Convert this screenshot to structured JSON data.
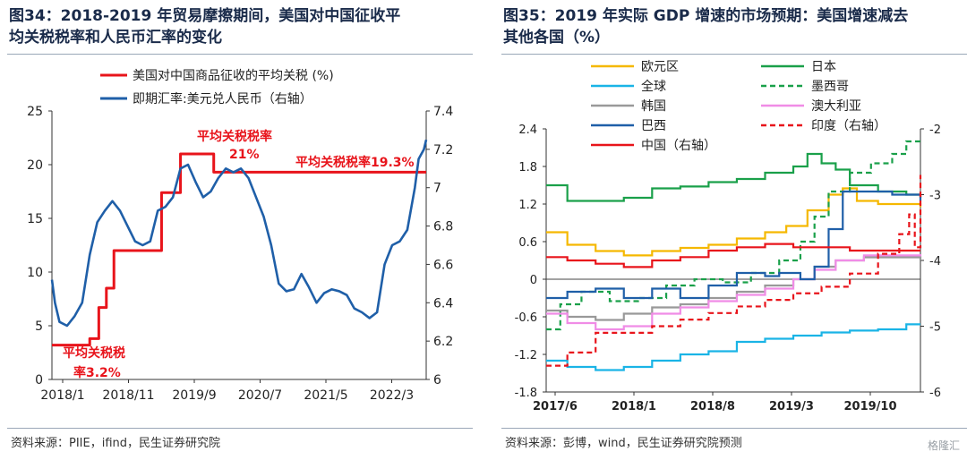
{
  "left": {
    "title_l1": "图34：2018-2019 年贸易摩擦期间，美国对中国征收平",
    "title_l2": "均关税税率和人民币汇率的变化",
    "source": "资料来源：PIIE，ifind，民生证券研究院",
    "chart_data": {
      "type": "line",
      "x_ticks": [
        "2018/1",
        "2018/11",
        "2019/9",
        "2020/7",
        "2021/5",
        "2022/3"
      ],
      "y_left": {
        "min": 0,
        "max": 25,
        "ticks": [
          0,
          5,
          10,
          15,
          20,
          25
        ]
      },
      "y_right": {
        "min": 6,
        "max": 7.4,
        "ticks": [
          6,
          6.2,
          6.4,
          6.6,
          6.8,
          7,
          7.2,
          7.4
        ]
      },
      "legend": [
        "美国对中国商品征收的平均关税 (%)",
        "即期汇率:美元兑人民币（右轴）"
      ],
      "annotations": [
        "平均关税税",
        "率3.2%",
        "平均关税税率",
        "21%",
        "平均关税税率19.3%"
      ],
      "series": [
        {
          "name": "美国对中国商品征收的平均关税 (%)",
          "axis": "left",
          "color": "#e8141b",
          "step": true,
          "points": [
            [
              2018.0,
              3.2
            ],
            [
              2018.3,
              3.2
            ],
            [
              2018.5,
              3.8
            ],
            [
              2018.62,
              6.7
            ],
            [
              2018.72,
              8.5
            ],
            [
              2018.82,
              12.0
            ],
            [
              2019.35,
              12.0
            ],
            [
              2019.45,
              17.4
            ],
            [
              2019.65,
              17.4
            ],
            [
              2019.7,
              21.0
            ],
            [
              2020.12,
              21.0
            ],
            [
              2020.14,
              19.3
            ],
            [
              2022.95,
              19.3
            ]
          ]
        },
        {
          "name": "即期汇率:美元兑人民币（右轴）",
          "axis": "right",
          "color": "#1f5fa8",
          "step": false,
          "points": [
            [
              2018.0,
              6.52
            ],
            [
              2018.04,
              6.4
            ],
            [
              2018.1,
              6.3
            ],
            [
              2018.2,
              6.28
            ],
            [
              2018.3,
              6.33
            ],
            [
              2018.4,
              6.4
            ],
            [
              2018.5,
              6.65
            ],
            [
              2018.6,
              6.82
            ],
            [
              2018.7,
              6.88
            ],
            [
              2018.8,
              6.93
            ],
            [
              2018.9,
              6.88
            ],
            [
              2019.0,
              6.8
            ],
            [
              2019.1,
              6.72
            ],
            [
              2019.2,
              6.7
            ],
            [
              2019.3,
              6.72
            ],
            [
              2019.4,
              6.88
            ],
            [
              2019.5,
              6.9
            ],
            [
              2019.6,
              6.95
            ],
            [
              2019.7,
              7.1
            ],
            [
              2019.8,
              7.12
            ],
            [
              2019.9,
              7.03
            ],
            [
              2020.0,
              6.95
            ],
            [
              2020.1,
              6.98
            ],
            [
              2020.2,
              7.05
            ],
            [
              2020.3,
              7.1
            ],
            [
              2020.4,
              7.08
            ],
            [
              2020.5,
              7.1
            ],
            [
              2020.6,
              7.05
            ],
            [
              2020.7,
              6.95
            ],
            [
              2020.8,
              6.85
            ],
            [
              2020.9,
              6.7
            ],
            [
              2021.0,
              6.5
            ],
            [
              2021.1,
              6.46
            ],
            [
              2021.2,
              6.47
            ],
            [
              2021.3,
              6.55
            ],
            [
              2021.4,
              6.48
            ],
            [
              2021.5,
              6.4
            ],
            [
              2021.6,
              6.45
            ],
            [
              2021.7,
              6.47
            ],
            [
              2021.8,
              6.46
            ],
            [
              2021.9,
              6.44
            ],
            [
              2022.0,
              6.37
            ],
            [
              2022.1,
              6.35
            ],
            [
              2022.2,
              6.32
            ],
            [
              2022.3,
              6.35
            ],
            [
              2022.4,
              6.6
            ],
            [
              2022.5,
              6.7
            ],
            [
              2022.6,
              6.72
            ],
            [
              2022.7,
              6.78
            ],
            [
              2022.8,
              7.0
            ],
            [
              2022.85,
              7.15
            ],
            [
              2022.92,
              7.2
            ],
            [
              2022.95,
              7.25
            ]
          ]
        }
      ]
    }
  },
  "right": {
    "title_l1": "图35：2019 年实际 GDP 增速的市场预期：美国增速减去",
    "title_l2": "其他各国（%）",
    "source": "资料来源：彭博，wind，民生证券研究院预测",
    "watermark": "格隆汇",
    "chart_data": {
      "type": "line",
      "x_ticks": [
        "2017/6",
        "2018/1",
        "2018/8",
        "2019/3",
        "2019/10"
      ],
      "y_left": {
        "min": -1.8,
        "max": 2.4,
        "ticks": [
          -1.8,
          -1.2,
          -0.6,
          0,
          0.6,
          1.2,
          1.8,
          2.4
        ]
      },
      "y_right": {
        "min": -6,
        "max": -2,
        "ticks": [
          -6,
          -5,
          -4,
          -3,
          -2
        ]
      },
      "legend": [
        "欧元区",
        "日本",
        "全球",
        "墨西哥",
        "韩国",
        "澳大利亚",
        "巴西",
        "印度（右轴）",
        "中国（右轴）"
      ],
      "series": [
        {
          "name": "欧元区",
          "axis": "left",
          "color": "#f5b800",
          "dash": false,
          "points": [
            [
              2017.45,
              0.75
            ],
            [
              2017.6,
              0.55
            ],
            [
              2017.8,
              0.45
            ],
            [
              2018.0,
              0.38
            ],
            [
              2018.2,
              0.45
            ],
            [
              2018.4,
              0.5
            ],
            [
              2018.6,
              0.55
            ],
            [
              2018.8,
              0.65
            ],
            [
              2019.0,
              0.75
            ],
            [
              2019.15,
              0.85
            ],
            [
              2019.3,
              1.1
            ],
            [
              2019.45,
              1.35
            ],
            [
              2019.55,
              1.45
            ],
            [
              2019.65,
              1.25
            ],
            [
              2019.8,
              1.2
            ],
            [
              2019.95,
              1.2
            ],
            [
              2020.1,
              1.15
            ]
          ]
        },
        {
          "name": "日本",
          "axis": "left",
          "color": "#1aa04a",
          "dash": false,
          "points": [
            [
              2017.45,
              1.5
            ],
            [
              2017.6,
              1.25
            ],
            [
              2017.8,
              1.25
            ],
            [
              2018.0,
              1.3
            ],
            [
              2018.2,
              1.45
            ],
            [
              2018.4,
              1.48
            ],
            [
              2018.6,
              1.55
            ],
            [
              2018.8,
              1.6
            ],
            [
              2019.0,
              1.7
            ],
            [
              2019.2,
              1.8
            ],
            [
              2019.3,
              2.0
            ],
            [
              2019.4,
              1.85
            ],
            [
              2019.5,
              1.75
            ],
            [
              2019.6,
              1.5
            ],
            [
              2019.8,
              1.4
            ],
            [
              2020.0,
              1.35
            ],
            [
              2020.1,
              1.3
            ]
          ]
        },
        {
          "name": "全球",
          "axis": "left",
          "color": "#1ab4e6",
          "dash": false,
          "points": [
            [
              2017.45,
              -1.3
            ],
            [
              2017.6,
              -1.4
            ],
            [
              2017.8,
              -1.45
            ],
            [
              2018.0,
              -1.4
            ],
            [
              2018.2,
              -1.3
            ],
            [
              2018.4,
              -1.2
            ],
            [
              2018.6,
              -1.15
            ],
            [
              2018.8,
              -1.0
            ],
            [
              2019.0,
              -0.95
            ],
            [
              2019.2,
              -0.9
            ],
            [
              2019.4,
              -0.85
            ],
            [
              2019.6,
              -0.82
            ],
            [
              2019.8,
              -0.8
            ],
            [
              2020.0,
              -0.72
            ],
            [
              2020.1,
              -0.72
            ]
          ]
        },
        {
          "name": "墨西哥",
          "axis": "left",
          "color": "#1aa04a",
          "dash": true,
          "points": [
            [
              2017.45,
              -0.8
            ],
            [
              2017.55,
              -0.4
            ],
            [
              2017.7,
              -0.2
            ],
            [
              2017.9,
              -0.35
            ],
            [
              2018.1,
              -0.3
            ],
            [
              2018.3,
              -0.1
            ],
            [
              2018.5,
              0.0
            ],
            [
              2018.7,
              -0.05
            ],
            [
              2018.9,
              0.1
            ],
            [
              2019.1,
              0.3
            ],
            [
              2019.25,
              0.6
            ],
            [
              2019.35,
              1.0
            ],
            [
              2019.45,
              1.4
            ],
            [
              2019.6,
              1.7
            ],
            [
              2019.75,
              1.85
            ],
            [
              2019.9,
              2.0
            ],
            [
              2020.0,
              2.2
            ],
            [
              2020.1,
              2.2
            ]
          ]
        },
        {
          "name": "韩国",
          "axis": "left",
          "color": "#999999",
          "dash": false,
          "points": [
            [
              2017.45,
              -0.5
            ],
            [
              2017.6,
              -0.6
            ],
            [
              2017.8,
              -0.65
            ],
            [
              2018.0,
              -0.55
            ],
            [
              2018.2,
              -0.45
            ],
            [
              2018.4,
              -0.4
            ],
            [
              2018.6,
              -0.3
            ],
            [
              2018.8,
              -0.2
            ],
            [
              2019.0,
              -0.1
            ],
            [
              2019.2,
              0.0
            ],
            [
              2019.35,
              0.2
            ],
            [
              2019.5,
              0.3
            ],
            [
              2019.7,
              0.35
            ],
            [
              2019.9,
              0.35
            ],
            [
              2020.1,
              0.3
            ]
          ]
        },
        {
          "name": "澳大利亚",
          "axis": "left",
          "color": "#f08ce6",
          "dash": false,
          "points": [
            [
              2017.45,
              -0.55
            ],
            [
              2017.6,
              -0.7
            ],
            [
              2017.8,
              -0.8
            ],
            [
              2018.0,
              -0.75
            ],
            [
              2018.2,
              -0.55
            ],
            [
              2018.4,
              -0.45
            ],
            [
              2018.6,
              -0.35
            ],
            [
              2018.8,
              -0.25
            ],
            [
              2019.0,
              -0.15
            ],
            [
              2019.2,
              0.0
            ],
            [
              2019.35,
              0.15
            ],
            [
              2019.5,
              0.3
            ],
            [
              2019.7,
              0.38
            ],
            [
              2019.9,
              0.38
            ],
            [
              2020.1,
              0.4
            ]
          ]
        },
        {
          "name": "巴西",
          "axis": "left",
          "color": "#1f5fa8",
          "dash": false,
          "points": [
            [
              2017.45,
              -0.3
            ],
            [
              2017.6,
              -0.2
            ],
            [
              2017.8,
              -0.15
            ],
            [
              2018.0,
              -0.3
            ],
            [
              2018.2,
              -0.15
            ],
            [
              2018.4,
              -0.3
            ],
            [
              2018.6,
              -0.1
            ],
            [
              2018.8,
              0.1
            ],
            [
              2019.0,
              0.05
            ],
            [
              2019.1,
              0.1
            ],
            [
              2019.25,
              0.0
            ],
            [
              2019.35,
              0.2
            ],
            [
              2019.45,
              0.8
            ],
            [
              2019.55,
              1.4
            ],
            [
              2019.7,
              1.4
            ],
            [
              2019.9,
              1.35
            ],
            [
              2020.1,
              1.25
            ]
          ]
        },
        {
          "name": "印度（右轴）",
          "axis": "right",
          "color": "#e8141b",
          "dash": true,
          "points": [
            [
              2017.45,
              -5.6
            ],
            [
              2017.6,
              -5.4
            ],
            [
              2017.8,
              -5.1
            ],
            [
              2018.0,
              -5.1
            ],
            [
              2018.2,
              -5.0
            ],
            [
              2018.4,
              -4.9
            ],
            [
              2018.6,
              -4.8
            ],
            [
              2018.8,
              -4.7
            ],
            [
              2019.0,
              -4.6
            ],
            [
              2019.2,
              -4.5
            ],
            [
              2019.4,
              -4.4
            ],
            [
              2019.6,
              -4.2
            ],
            [
              2019.8,
              -3.9
            ],
            [
              2019.95,
              -3.6
            ],
            [
              2020.02,
              -3.3
            ],
            [
              2020.06,
              -3.8
            ],
            [
              2020.1,
              -2.7
            ]
          ]
        },
        {
          "name": "中国（右轴）",
          "axis": "right",
          "color": "#e8141b",
          "dash": false,
          "points": [
            [
              2017.45,
              -3.95
            ],
            [
              2017.6,
              -4.0
            ],
            [
              2017.8,
              -4.05
            ],
            [
              2018.0,
              -4.1
            ],
            [
              2018.2,
              -4.0
            ],
            [
              2018.4,
              -3.95
            ],
            [
              2018.6,
              -3.85
            ],
            [
              2018.8,
              -3.8
            ],
            [
              2019.0,
              -3.75
            ],
            [
              2019.2,
              -3.8
            ],
            [
              2019.4,
              -3.8
            ],
            [
              2019.6,
              -3.85
            ],
            [
              2019.8,
              -3.85
            ],
            [
              2020.0,
              -3.85
            ],
            [
              2020.1,
              -3.85
            ]
          ]
        }
      ]
    }
  }
}
